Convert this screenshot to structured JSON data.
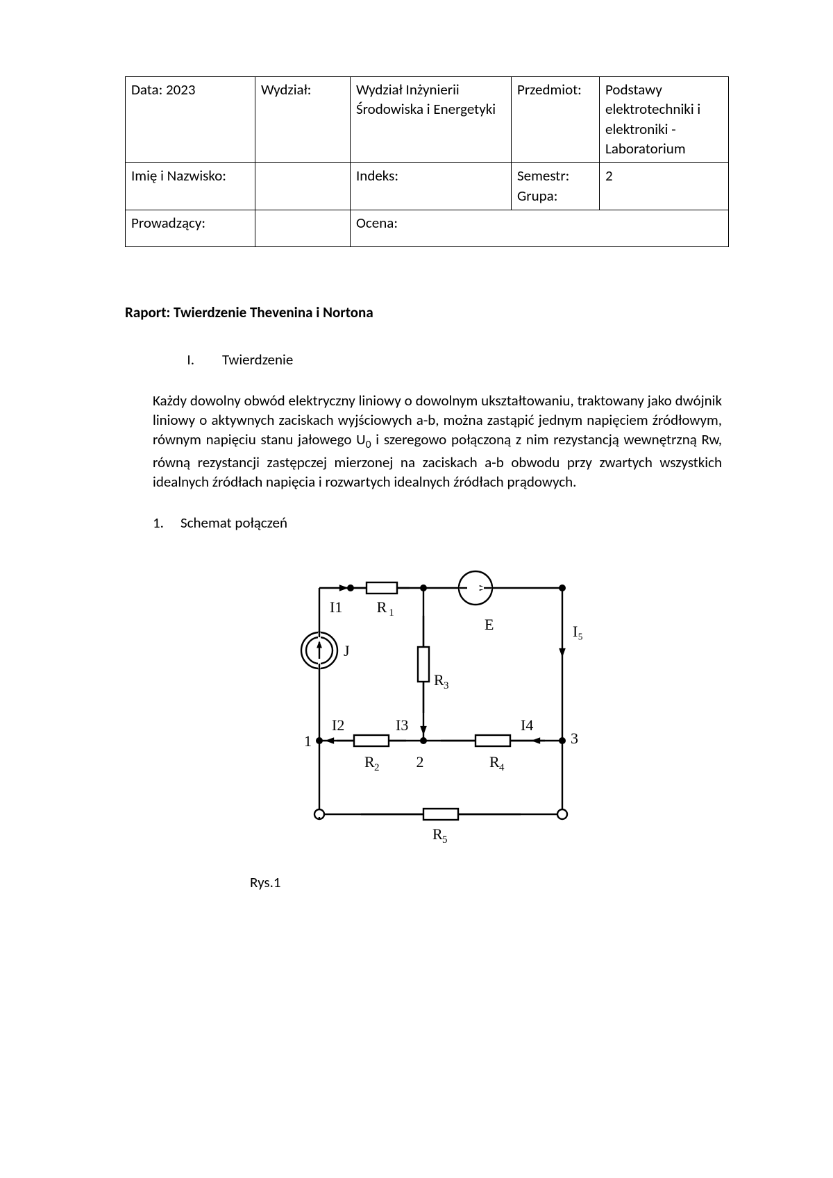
{
  "table": {
    "r1c1": "Data: 2023",
    "r1c2": "Wydział:",
    "r1c3": "Wydział Inżynierii Środowiska i Energetyki",
    "r1c4": "Przedmiot:",
    "r1c5": "Podstawy elektrotechniki i elektroniki - Laboratorium",
    "r2c1": "Imię i Nazwisko:",
    "r2c2": "",
    "r2c3": "Indeks:",
    "r2c4a": "Semestr:",
    "r2c4b": "Grupa:",
    "r2c5": "2",
    "r3c1": "Prowadzący:",
    "r3c2": "",
    "r3c3": "Ocena:"
  },
  "title": "Raport: Twierdzenie Thevenina i Nortona",
  "section_roman": "I.",
  "section_label": "Twierdzenie",
  "theorem_text": "Każdy dowolny obwód elektryczny liniowy o dowolnym ukształtowaniu, traktowany jako dwójnik liniowy o aktywnych zaciskach wyjściowych a-b, można zastąpić jednym napięciem źródłowym, równym napięciu stanu jałowego U",
  "theorem_sub": "0",
  "theorem_tail": " i szeregowo połączoną z nim rezystancją wewnętrzną Rw, równą rezystancji zastępczej mierzonej na zaciskach a-b obwodu przy zwartych wszystkich idealnych źródłach napięcia i rozwartych idealnych źródłach prądowych.",
  "sub_num": "1.",
  "sub_label": "Schemat połączeń",
  "fig_caption": "Rys.1",
  "circuit": {
    "type": "circuit-diagram",
    "stroke_color": "#000000",
    "stroke_width": 2.4,
    "background": "#ffffff",
    "font_family": "serif",
    "label_fontsize": 22,
    "resistors": [
      {
        "id": "R1",
        "label": "R₁"
      },
      {
        "id": "R2",
        "label": "R₂"
      },
      {
        "id": "R3",
        "label": "R₃"
      },
      {
        "id": "R4",
        "label": "R₄"
      },
      {
        "id": "R5",
        "label": "R₅"
      }
    ],
    "sources": [
      {
        "id": "J",
        "type": "current",
        "label": "J"
      },
      {
        "id": "E",
        "type": "voltage",
        "label": "E"
      }
    ],
    "currents": [
      "I1",
      "I2",
      "I3",
      "I4",
      "I5"
    ],
    "current_labels": {
      "I1": "I1",
      "I2": "I2",
      "I3": "I3",
      "I4": "I4",
      "I5": "I₅"
    },
    "nodes": [
      "1",
      "2",
      "3"
    ]
  }
}
